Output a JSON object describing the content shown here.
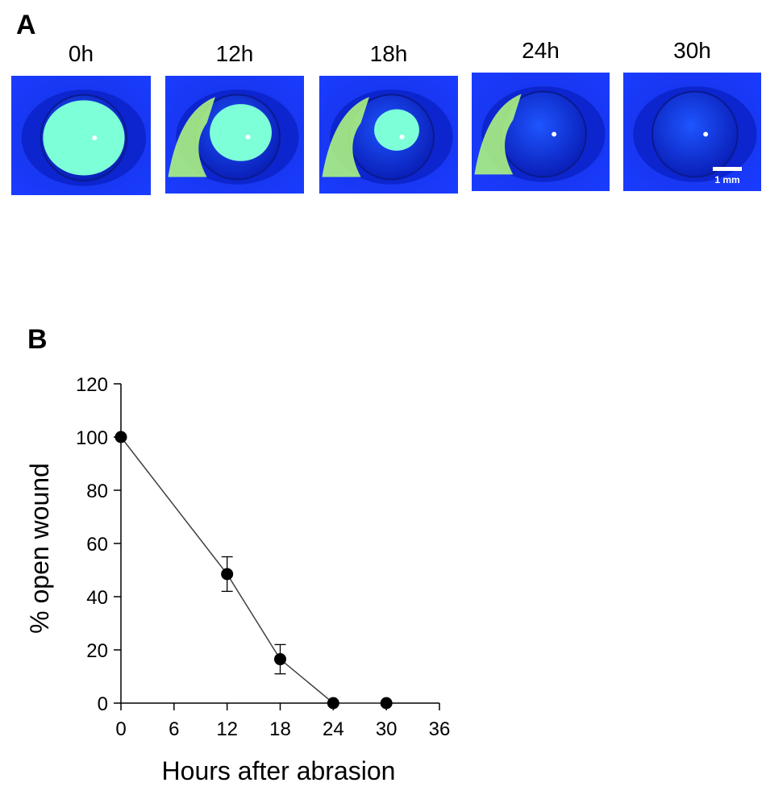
{
  "panel_a": {
    "letter": "A",
    "images": [
      {
        "label": "0h",
        "wound": 1.0,
        "dye_fold": false
      },
      {
        "label": "12h",
        "wound": 0.48,
        "dye_fold": true
      },
      {
        "label": "18h",
        "wound": 0.17,
        "dye_fold": true
      },
      {
        "label": "24h",
        "wound": 0.0,
        "dye_fold": true
      },
      {
        "label": "30h",
        "wound": 0.0,
        "dye_fold": false
      }
    ],
    "scale_bar_label": "1 mm"
  },
  "panel_b": {
    "letter": "B"
  },
  "colors": {
    "background_blue": "#1a3cff",
    "fluorescein": "#7dffd8",
    "dye_green": "#b6ff7a",
    "line": "#404040",
    "marker": "#000000"
  },
  "chart_data": {
    "type": "line",
    "xlabel": "Hours after abrasion",
    "ylabel": "% open wound",
    "xlim": [
      0,
      36
    ],
    "ylim": [
      0,
      120
    ],
    "xticks": [
      0,
      6,
      12,
      18,
      24,
      30,
      36
    ],
    "yticks": [
      0,
      20,
      40,
      60,
      80,
      100,
      120
    ],
    "grid": false,
    "series": [
      {
        "x": [
          0,
          12,
          18,
          24,
          30
        ],
        "y": [
          100,
          48.5,
          16.5,
          0,
          0
        ],
        "error": [
          0,
          6.5,
          5.5,
          0,
          0
        ]
      }
    ]
  }
}
